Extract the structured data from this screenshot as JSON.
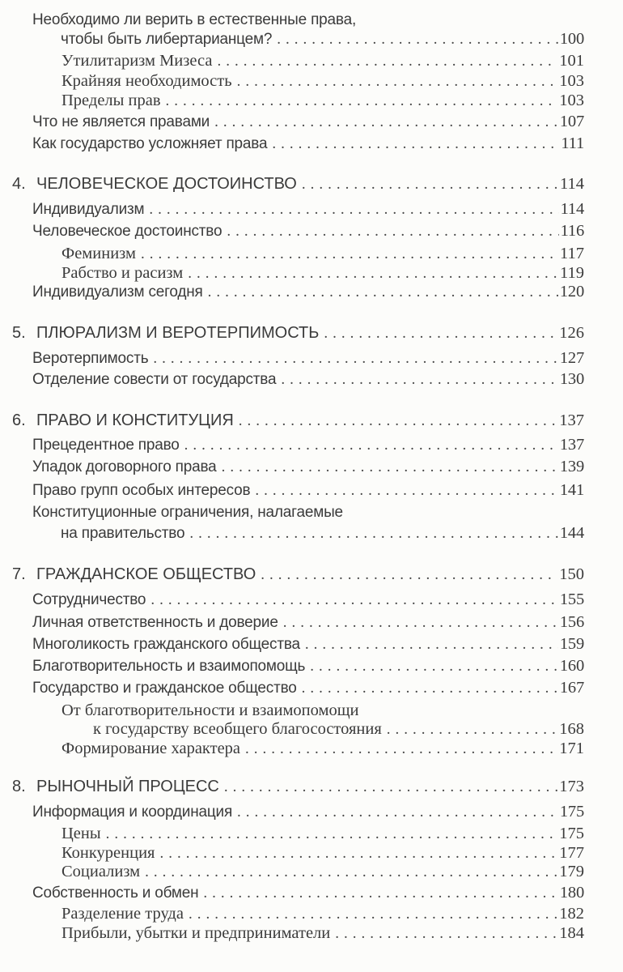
{
  "entries": [
    {
      "level": "section",
      "title": "Необходимо ли верить в естественные права,",
      "page": ""
    },
    {
      "level": "section-cont",
      "title": "чтобы быть либертарианцем?",
      "page": "100"
    },
    {
      "level": "sub",
      "title": "Утилитаризм Мизеса",
      "page": "101"
    },
    {
      "level": "sub",
      "title": "Крайняя необходимость",
      "page": "103"
    },
    {
      "level": "sub",
      "title": "Пределы прав",
      "page": "103"
    },
    {
      "level": "section",
      "title": "Что не является правами",
      "page": "107"
    },
    {
      "level": "section",
      "title": "Как государство усложняет права",
      "page": "111"
    },
    {
      "level": "chapter",
      "number": "4.",
      "title": "ЧЕЛОВЕЧЕСКОЕ ДОСТОИНСТВО",
      "page": "114"
    },
    {
      "level": "section",
      "title": "Индивидуализм",
      "page": "114"
    },
    {
      "level": "section",
      "title": "Человеческое достоинство",
      "page": "116"
    },
    {
      "level": "sub",
      "title": "Феминизм",
      "page": "117"
    },
    {
      "level": "sub",
      "title": "Рабство и расизм",
      "page": "119"
    },
    {
      "level": "section",
      "title": "Индивидуализм сегодня",
      "page": "120"
    },
    {
      "level": "chapter",
      "number": "5.",
      "title": "ПЛЮРАЛИЗМ И ВЕРОТЕРПИМОСТЬ",
      "page": "126"
    },
    {
      "level": "section",
      "title": "Веротерпимость",
      "page": "127"
    },
    {
      "level": "section",
      "title": "Отделение совести от государства",
      "page": "130"
    },
    {
      "level": "chapter",
      "number": "6.",
      "title": "ПРАВО И КОНСТИТУЦИЯ",
      "page": "137"
    },
    {
      "level": "section",
      "title": "Прецедентное право",
      "page": "137"
    },
    {
      "level": "section",
      "title": "Упадок договорного права",
      "page": "139"
    },
    {
      "level": "section",
      "title": "Право групп особых интересов",
      "page": "141"
    },
    {
      "level": "section",
      "title": "Конституционные ограничения, налагаемые",
      "page": ""
    },
    {
      "level": "section-cont",
      "title": "на правительство",
      "page": "144"
    },
    {
      "level": "chapter",
      "number": "7.",
      "title": "ГРАЖДАНСКОЕ ОБЩЕСТВО",
      "page": "150"
    },
    {
      "level": "section",
      "title": "Сотрудничество",
      "page": "155"
    },
    {
      "level": "section",
      "title": "Личная ответственность и доверие",
      "page": "156"
    },
    {
      "level": "section",
      "title": "Многоликость гражданского общества",
      "page": "159"
    },
    {
      "level": "section",
      "title": "Благотворительность и взаимопомощь",
      "page": "160"
    },
    {
      "level": "section",
      "title": "Государство и гражданское общество",
      "page": "167"
    },
    {
      "level": "sub",
      "title": "От благотворительности и взаимопомощи",
      "page": ""
    },
    {
      "level": "sub-cont",
      "title": "к государству всеобщего благосостояния",
      "page": "168"
    },
    {
      "level": "sub",
      "title": "Формирование характера",
      "page": "171"
    },
    {
      "level": "chapter",
      "number": "8.",
      "title": "РЫНОЧНЫЙ ПРОЦЕСС",
      "page": "173"
    },
    {
      "level": "section",
      "title": "Информация и координация",
      "page": "175"
    },
    {
      "level": "sub",
      "title": "Цены",
      "page": "175"
    },
    {
      "level": "sub",
      "title": "Конкуренция",
      "page": "177"
    },
    {
      "level": "sub",
      "title": "Социализм",
      "page": "179"
    },
    {
      "level": "section",
      "title": "Собственность и обмен",
      "page": "180"
    },
    {
      "level": "sub",
      "title": "Разделение труда",
      "page": "182"
    },
    {
      "level": "sub",
      "title": "Прибыли, убытки и предприниматели",
      "page": "184"
    }
  ]
}
